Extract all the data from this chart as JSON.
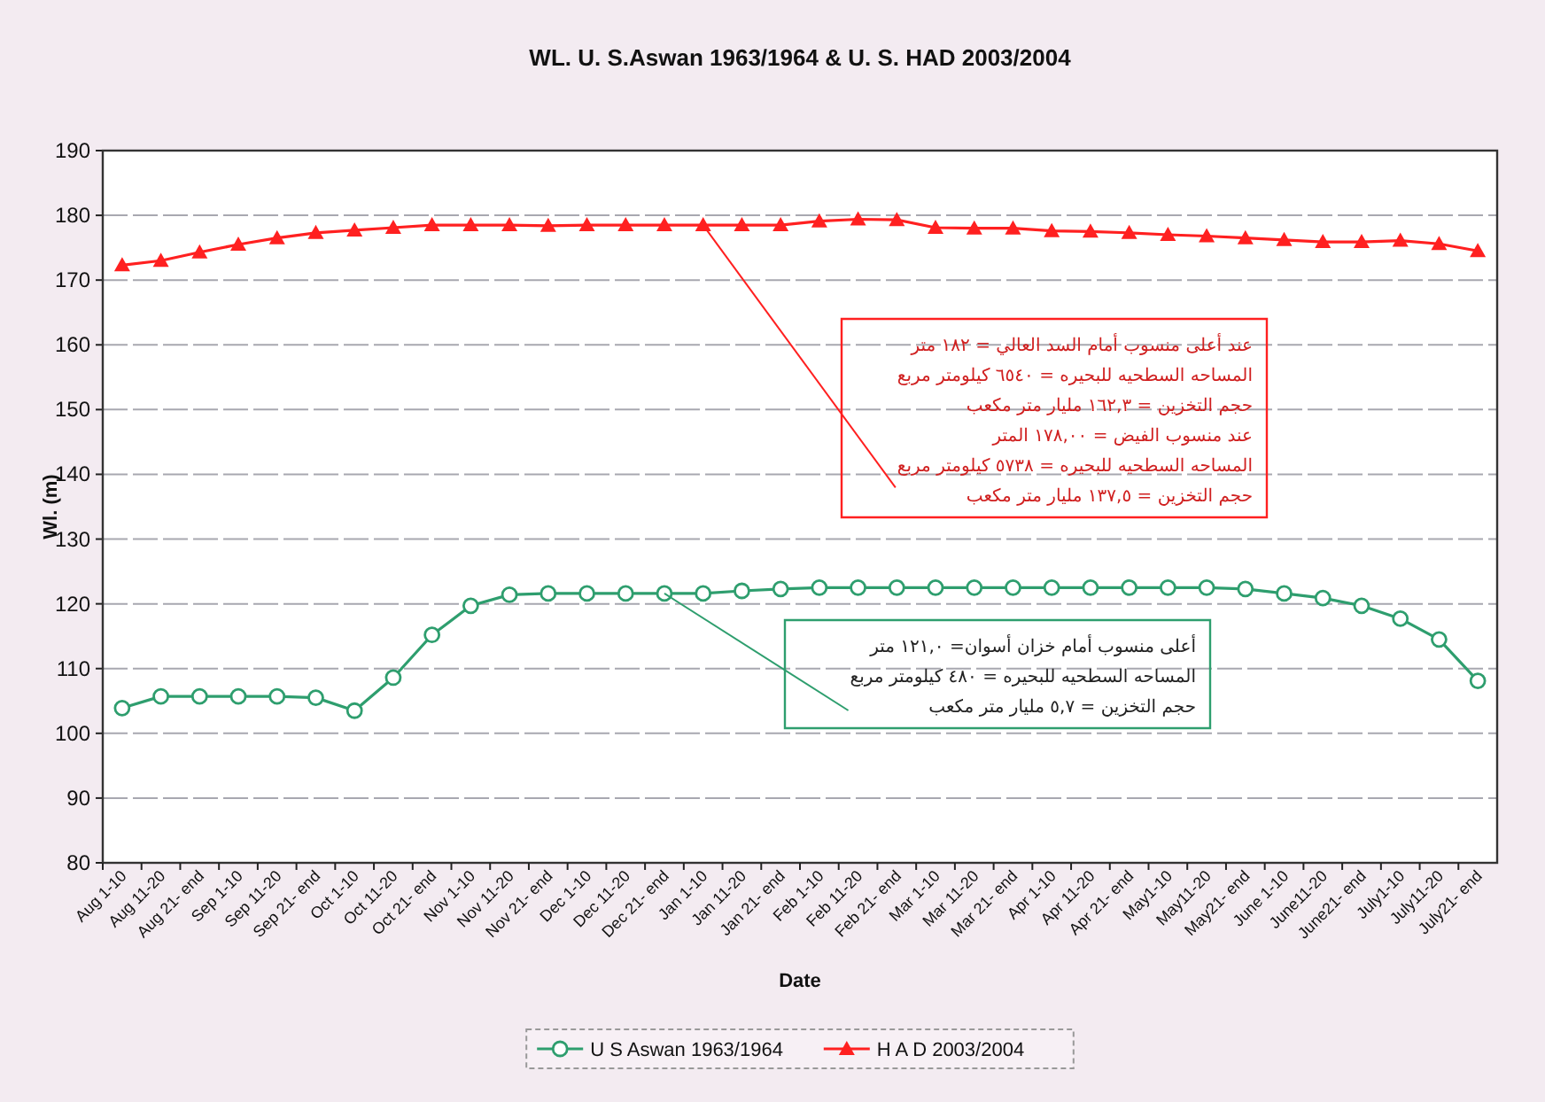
{
  "chart_data": {
    "type": "line",
    "title": "WL. U. S.Aswan 1963/1964 & U. S. HAD 2003/2004",
    "xlabel": "Date",
    "ylabel": "Wl. (m)",
    "categories": [
      "Aug 1-10",
      "Aug 11-20",
      "Aug 21- end",
      "Sep 1-10",
      "Sep 11-20",
      "Sep 21- end",
      "Oct 1-10",
      "Oct 11-20",
      "Oct 21- end",
      "Nov 1-10",
      "Nov 11-20",
      "Nov 21- end",
      "Dec 1-10",
      "Dec 11-20",
      "Dec 21- end",
      "Jan 1-10",
      "Jan 11-20",
      "Jan 21- end",
      "Feb 1-10",
      "Feb 11-20",
      "Feb 21- end",
      "Mar 1-10",
      "Mar 11-20",
      "Mar 21- end",
      "Apr 1-10",
      "Apr 11-20",
      "Apr 21- end",
      "May1-10",
      "May11-20",
      "May21- end",
      "June 1-10",
      "June11-20",
      "June21- end",
      "July1-10",
      "July11-20",
      "July21- end"
    ],
    "series": [
      {
        "name": "U S Aswan 1963/1964",
        "color": "#2e9e6e",
        "marker": "circle",
        "values": [
          103.9,
          105.7,
          105.7,
          105.7,
          105.7,
          105.5,
          103.5,
          108.6,
          115.2,
          119.7,
          121.4,
          121.6,
          121.6,
          121.6,
          121.6,
          121.6,
          122.0,
          122.3,
          122.5,
          122.5,
          122.5,
          122.5,
          122.5,
          122.5,
          122.5,
          122.5,
          122.5,
          122.5,
          122.5,
          122.3,
          121.6,
          120.9,
          119.7,
          117.7,
          114.5,
          108.1
        ]
      },
      {
        "name": "H A D 2003/2004",
        "color": "#ff2020",
        "marker": "triangle",
        "values": [
          172.3,
          173.0,
          174.3,
          175.5,
          176.5,
          177.3,
          177.7,
          178.1,
          178.5,
          178.5,
          178.5,
          178.4,
          178.5,
          178.5,
          178.5,
          178.5,
          178.5,
          178.5,
          179.1,
          179.4,
          179.3,
          178.1,
          178.0,
          178.0,
          177.6,
          177.5,
          177.3,
          177.0,
          176.8,
          176.5,
          176.2,
          175.9,
          175.9,
          176.1,
          175.6,
          174.5
        ]
      }
    ],
    "ylim": [
      80,
      190
    ],
    "yticks": [
      80,
      90,
      100,
      110,
      120,
      130,
      140,
      150,
      160,
      170,
      180,
      190
    ],
    "grid": "y",
    "legend": "bottom",
    "annotations": [
      {
        "text": "عند أعلى منسوب أمام السد العالي = ١٨٢ متر\nالمساحه السطحيه للبحيره = ٦٥٤٠ كيلومتر مربع\nحجم التخزين = ١٦٢,٣ مليار متر مكعب\nعند منسوب الفيض = ١٧٨,٠٠ المتر\nالمساحه السطحيه للبحيره = ٥٧٣٨ كيلومتر مربع\nحجم التخزين = ١٣٧,٥ مليار متر مكعب",
        "x": "Jan 1-10",
        "y": 178.5
      },
      {
        "text": "أعلى منسوب أمام خزان أسوان= ١٢١,٠ متر\nالمساحه السطحيه للبحيره = ٤٨٠ كيلومتر مربع\nحجم التخزين = ٥,٧ مليار متر مكعب",
        "x": "Dec 21- end",
        "y": 121.6
      }
    ]
  }
}
